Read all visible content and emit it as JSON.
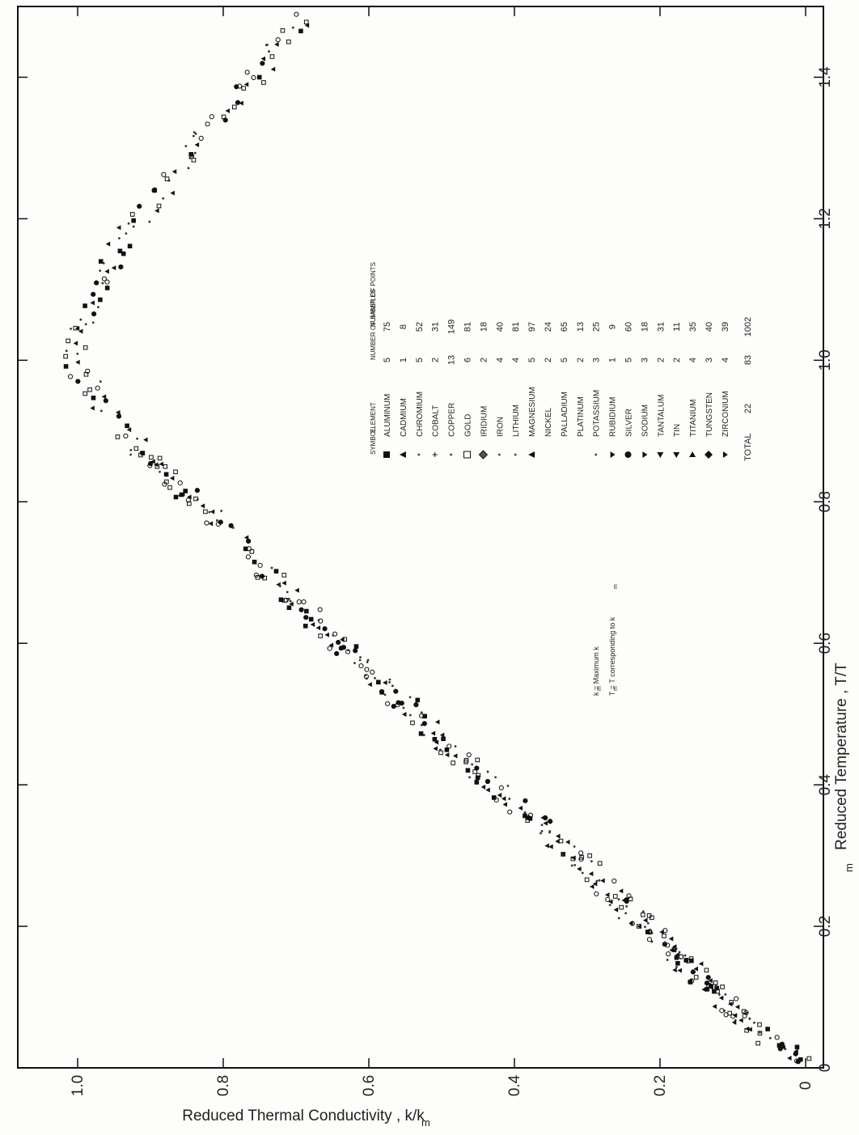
{
  "chart_data": {
    "type": "scatter",
    "title": "",
    "xlabel": "Reduced Temperature , T/T",
    "xlabel_sub": "m",
    "ylabel": "Reduced Thermal Conductivity , k/k",
    "ylabel_sub": "m",
    "xlim": [
      0,
      1.5
    ],
    "ylim": [
      0,
      1.1
    ],
    "x_ticks": [
      "0",
      "0.2",
      "0.4",
      "0.6",
      "0.8",
      "1.0",
      "1.2",
      "1.4"
    ],
    "y_ticks": [
      "0",
      "0.2",
      "0.4",
      "0.6",
      "0.8",
      "1.0"
    ],
    "x_tick_values": [
      0,
      0.2,
      0.4,
      0.6,
      0.8,
      1.0,
      1.2,
      1.4
    ],
    "y_tick_values": [
      0,
      0.2,
      0.4,
      0.6,
      0.8,
      1.0
    ],
    "grid": false,
    "legend_placement": "center-right",
    "legend_headers": [
      "SYMBOL",
      "ELEMENT",
      "NUMBER OF SAMPLES",
      "NUMBER OF POINTS"
    ],
    "legend": [
      {
        "element": "ALUMINUM",
        "samples": "5",
        "points": "75",
        "symbol": "square-filled"
      },
      {
        "element": "CADMIUM",
        "samples": "1",
        "points": "8",
        "symbol": "triangle-filled"
      },
      {
        "element": "CHROMIUM",
        "samples": "5",
        "points": "52",
        "symbol": "dot-small"
      },
      {
        "element": "COBALT",
        "samples": "2",
        "points": "31",
        "symbol": "cross"
      },
      {
        "element": "COPPER",
        "samples": "13",
        "points": "149",
        "symbol": "dot-small"
      },
      {
        "element": "GOLD",
        "samples": "6",
        "points": "81",
        "symbol": "square-open"
      },
      {
        "element": "IRIDIUM",
        "samples": "2",
        "points": "18",
        "symbol": "diamond-half"
      },
      {
        "element": "IRON",
        "samples": "4",
        "points": "40",
        "symbol": "dot-small"
      },
      {
        "element": "LITHIUM",
        "samples": "4",
        "points": "81",
        "symbol": "dot-small"
      },
      {
        "element": "MAGNESIUM",
        "samples": "5",
        "points": "97",
        "symbol": "triangle-filled"
      },
      {
        "element": "NICKEL",
        "samples": "2",
        "points": "24",
        "symbol": "none"
      },
      {
        "element": "PALLADIUM",
        "samples": "5",
        "points": "65",
        "symbol": "none"
      },
      {
        "element": "PLATINUM",
        "samples": "2",
        "points": "13",
        "symbol": "none"
      },
      {
        "element": "POTASSIUM",
        "samples": "3",
        "points": "25",
        "symbol": "dot-small"
      },
      {
        "element": "RUBIDIUM",
        "samples": "1",
        "points": "9",
        "symbol": "tri-down"
      },
      {
        "element": "SILVER",
        "samples": "5",
        "points": "60",
        "symbol": "circle-filled"
      },
      {
        "element": "SODIUM",
        "samples": "3",
        "points": "18",
        "symbol": "tri-down"
      },
      {
        "element": "TANTALUM",
        "samples": "2",
        "points": "31",
        "symbol": "tri-left"
      },
      {
        "element": "TIN",
        "samples": "2",
        "points": "11",
        "symbol": "tri-left"
      },
      {
        "element": "TITANIUM",
        "samples": "4",
        "points": "35",
        "symbol": "tri-right"
      },
      {
        "element": "TUNGSTEN",
        "samples": "3",
        "points": "40",
        "symbol": "diamond-filled"
      },
      {
        "element": "ZIRCONIUM",
        "samples": "4",
        "points": "39",
        "symbol": "tri-down"
      }
    ],
    "legend_total": {
      "label": "TOTAL",
      "elements": "22",
      "samples": "83",
      "points": "1002"
    },
    "annotations": [
      "k  = Maximum k",
      "T  = T corresponding to k"
    ],
    "annotation_subs": [
      "m",
      "m",
      "m"
    ],
    "series": [
      {
        "x": [
          0.01,
          0.02,
          0.03,
          0.04,
          0.05,
          0.06,
          0.065,
          0.07,
          0.08,
          0.085,
          0.09,
          0.1,
          0.105,
          0.11,
          0.12,
          0.125,
          0.13,
          0.14,
          0.145,
          0.15,
          0.155,
          0.16,
          0.17,
          0.175,
          0.18,
          0.19,
          0.2,
          0.205,
          0.21,
          0.22,
          0.23,
          0.235,
          0.24,
          0.25,
          0.26,
          0.27,
          0.28,
          0.29,
          0.3,
          0.31,
          0.32,
          0.33,
          0.34,
          0.35,
          0.36,
          0.37,
          0.38,
          0.39,
          0.4,
          0.41,
          0.42,
          0.43,
          0.44,
          0.45,
          0.46,
          0.47,
          0.48,
          0.49,
          0.5,
          0.51,
          0.52,
          0.53,
          0.54,
          0.55,
          0.56,
          0.57,
          0.58,
          0.59,
          0.6,
          0.61,
          0.62,
          0.63,
          0.64,
          0.65,
          0.66,
          0.67,
          0.68,
          0.69,
          0.7,
          0.72,
          0.74,
          0.76,
          0.78,
          0.79,
          0.8,
          0.81,
          0.82,
          0.83,
          0.84,
          0.85,
          0.86,
          0.87,
          0.88,
          0.9,
          0.92,
          0.94,
          0.96,
          0.98,
          1.0,
          1.02,
          1.04,
          1.06,
          1.08,
          1.1,
          1.12,
          1.14,
          1.16,
          1.18,
          1.2,
          1.22,
          1.24,
          1.26,
          1.28,
          1.3,
          1.32,
          1.34,
          1.36,
          1.38,
          1.4,
          1.42,
          1.44,
          1.46,
          1.48
        ],
        "y": [
          0.01,
          0.025,
          0.04,
          0.052,
          0.065,
          0.08,
          0.085,
          0.09,
          0.1,
          0.105,
          0.11,
          0.12,
          0.125,
          0.13,
          0.14,
          0.145,
          0.15,
          0.16,
          0.165,
          0.17,
          0.175,
          0.18,
          0.19,
          0.195,
          0.2,
          0.21,
          0.22,
          0.225,
          0.23,
          0.24,
          0.25,
          0.255,
          0.26,
          0.27,
          0.28,
          0.29,
          0.3,
          0.31,
          0.32,
          0.33,
          0.345,
          0.355,
          0.365,
          0.375,
          0.385,
          0.395,
          0.41,
          0.42,
          0.43,
          0.44,
          0.45,
          0.465,
          0.475,
          0.485,
          0.495,
          0.51,
          0.52,
          0.53,
          0.54,
          0.55,
          0.56,
          0.57,
          0.58,
          0.59,
          0.6,
          0.61,
          0.62,
          0.63,
          0.64,
          0.65,
          0.66,
          0.67,
          0.68,
          0.69,
          0.7,
          0.71,
          0.72,
          0.73,
          0.74,
          0.76,
          0.78,
          0.8,
          0.82,
          0.83,
          0.84,
          0.85,
          0.86,
          0.87,
          0.88,
          0.89,
          0.9,
          0.91,
          0.92,
          0.94,
          0.96,
          0.975,
          0.985,
          0.995,
          1.0,
          1.0,
          0.995,
          0.99,
          0.985,
          0.975,
          0.965,
          0.955,
          0.945,
          0.93,
          0.915,
          0.9,
          0.885,
          0.87,
          0.855,
          0.84,
          0.825,
          0.81,
          0.79,
          0.775,
          0.76,
          0.745,
          0.73,
          0.71,
          0.695
        ]
      }
    ]
  }
}
